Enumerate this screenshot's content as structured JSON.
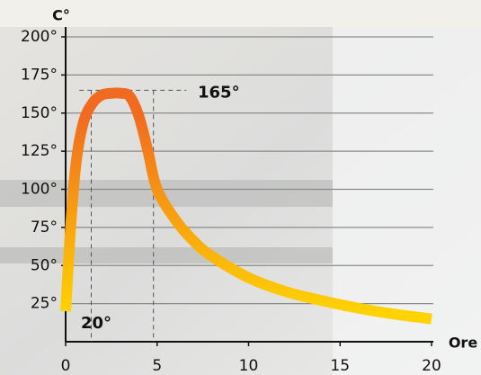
{
  "chart_data": {
    "type": "line",
    "y_label": "C°",
    "x_label": "Ore",
    "x": [
      0,
      0.3,
      0.6,
      1,
      1.5,
      2,
      2.5,
      3,
      3.5,
      4,
      4.5,
      5,
      6,
      7,
      8,
      10,
      12,
      14,
      16,
      18,
      20
    ],
    "values": [
      20,
      80,
      120,
      145,
      157,
      162,
      163,
      163,
      161,
      148,
      125,
      100,
      80,
      66,
      56,
      42,
      33,
      27,
      22,
      18,
      15
    ],
    "color_low": "#ffd200",
    "color_high": "#f06a20",
    "xlim": [
      0,
      20
    ],
    "xticks": [
      0,
      5,
      10,
      15,
      20
    ],
    "ylim": [
      0,
      200
    ],
    "yticks": [
      {
        "value": 25,
        "label": "25°"
      },
      {
        "value": 50,
        "label": "50°"
      },
      {
        "value": 75,
        "label": "75°"
      },
      {
        "value": 100,
        "label": "100°"
      },
      {
        "value": 125,
        "label": "125°"
      },
      {
        "value": 150,
        "label": "150°"
      },
      {
        "value": 175,
        "label": "175°"
      },
      {
        "value": 200,
        "label": "200°"
      }
    ],
    "grid": true,
    "guide_x": [
      1.4,
      4.8
    ],
    "annotations": [
      {
        "label": "165°",
        "value": 165
      },
      {
        "label": "20°",
        "value": 20
      }
    ]
  }
}
